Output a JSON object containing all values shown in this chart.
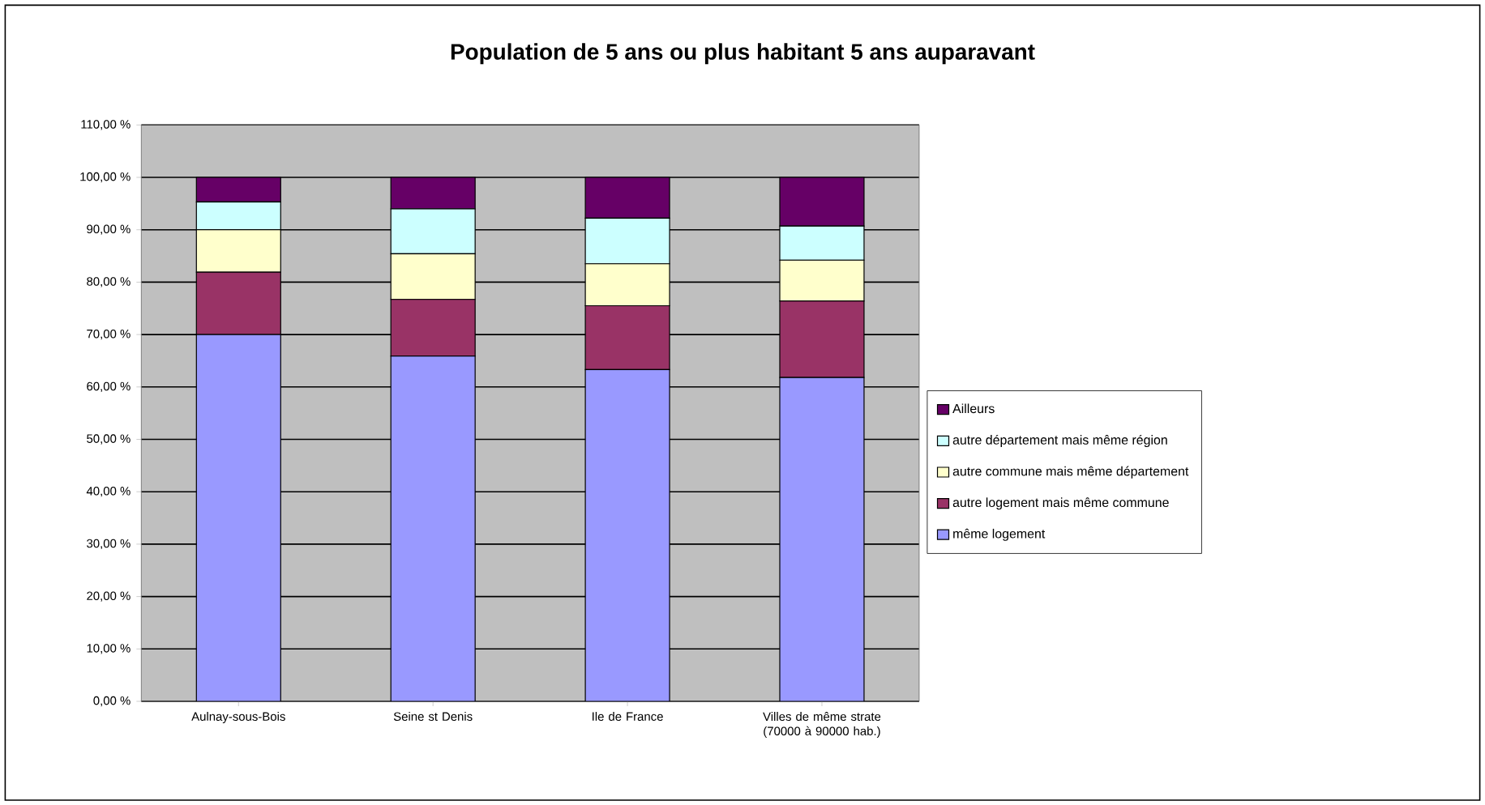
{
  "chart_data": {
    "type": "bar",
    "stacked": true,
    "title": "Population de 5 ans ou plus habitant 5 ans auparavant",
    "categories": [
      "Aulnay-sous-Bois",
      "Seine st Denis",
      "Ile de France",
      "Villes de même strate (70000 à 90000 hab.)"
    ],
    "series": [
      {
        "name": "même logement",
        "color": "#9999ff",
        "values": [
          70.0,
          65.9,
          63.3,
          61.8
        ]
      },
      {
        "name": "autre logement mais même commune",
        "color": "#993366",
        "values": [
          11.9,
          10.8,
          12.2,
          14.6
        ]
      },
      {
        "name": "autre commune mais même département",
        "color": "#ffffcc",
        "values": [
          8.1,
          8.7,
          8.0,
          7.8
        ]
      },
      {
        "name": "autre département mais même région",
        "color": "#ccffff",
        "values": [
          5.3,
          8.6,
          8.7,
          6.5
        ]
      },
      {
        "name": "Ailleurs",
        "color": "#660066",
        "values": [
          4.7,
          6.0,
          7.8,
          9.3
        ]
      }
    ],
    "ylim": [
      0,
      110
    ],
    "yticks": [
      {
        "value": 0,
        "label": "0,00 %"
      },
      {
        "value": 10,
        "label": "10,00 %"
      },
      {
        "value": 20,
        "label": "20,00 %"
      },
      {
        "value": 30,
        "label": "30,00 %"
      },
      {
        "value": 40,
        "label": "40,00 %"
      },
      {
        "value": 50,
        "label": "50,00 %"
      },
      {
        "value": 60,
        "label": "60,00 %"
      },
      {
        "value": 70,
        "label": "70,00 %"
      },
      {
        "value": 80,
        "label": "80,00 %"
      },
      {
        "value": 90,
        "label": "90,00 %"
      },
      {
        "value": 100,
        "label": "100,00 %"
      },
      {
        "value": 110,
        "label": "110,00 %"
      }
    ],
    "grid": "y",
    "legend": "right"
  }
}
